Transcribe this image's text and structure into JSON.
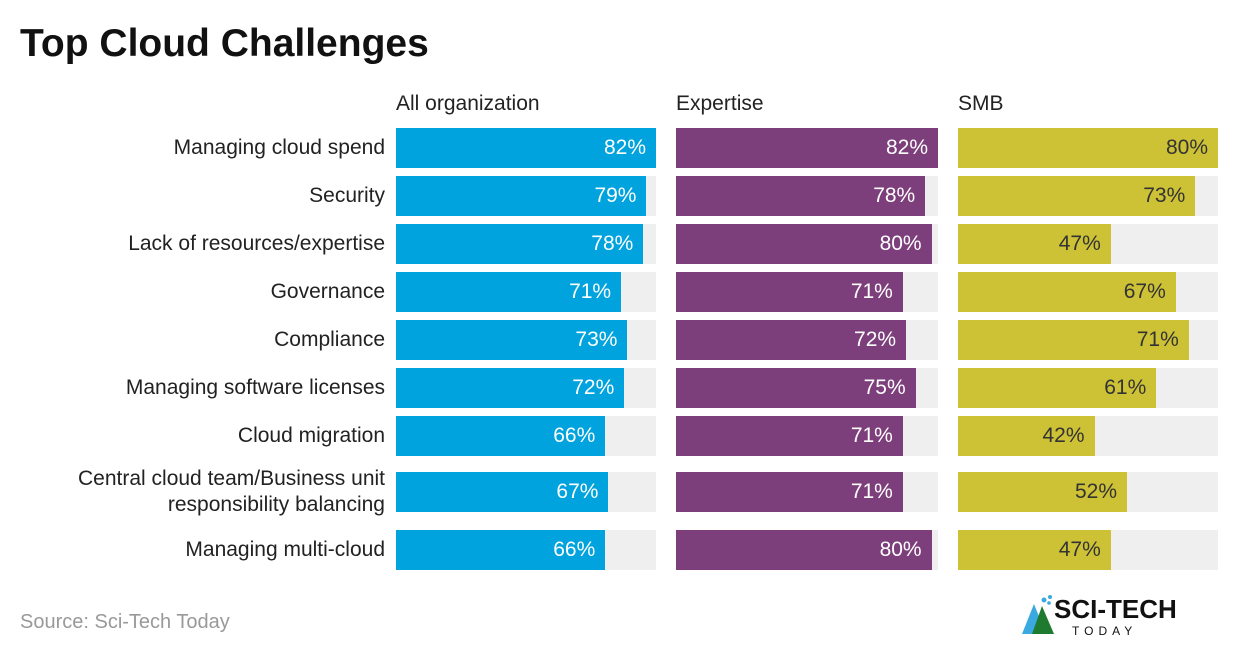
{
  "chart_data": {
    "type": "bar",
    "orientation": "horizontal",
    "title": "Top Cloud Challenges",
    "categories": [
      "Managing cloud spend",
      "Security",
      "Lack of resources/expertise",
      "Governance",
      "Compliance",
      "Managing software licenses",
      "Cloud migration",
      "Central cloud team/Business unit responsibility balancing",
      "Managing multi-cloud"
    ],
    "series": [
      {
        "name": "All organization",
        "color": "#00a3de",
        "text_color": "#ffffff",
        "values": [
          82,
          79,
          78,
          71,
          73,
          72,
          66,
          67,
          66
        ],
        "xlim": [
          0,
          82
        ]
      },
      {
        "name": "Expertise",
        "color": "#7d3f7c",
        "text_color": "#ffffff",
        "values": [
          82,
          78,
          80,
          71,
          72,
          75,
          71,
          71,
          80
        ],
        "xlim": [
          0,
          82
        ]
      },
      {
        "name": "SMB",
        "color": "#cdc136",
        "text_color": "#333333",
        "values": [
          80,
          73,
          47,
          67,
          71,
          61,
          42,
          52,
          47
        ],
        "xlim": [
          0,
          80
        ]
      }
    ],
    "value_suffix": "%",
    "track_color": "#efefef",
    "grid": false,
    "legend": "none"
  },
  "source": "Source: Sci-Tech Today",
  "logo": {
    "text": "SCI-TECH",
    "subtext": "TODAY"
  }
}
